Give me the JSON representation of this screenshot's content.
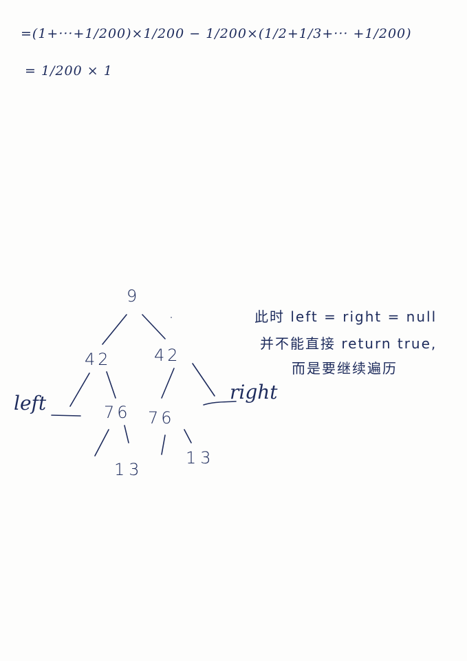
{
  "equations": {
    "line1": "=(1+···+1/200)×1/200 − 1/200×(1/2+1/3+··· +1/200)",
    "line2": "= 1/200 × 1"
  },
  "tree": {
    "root": "9",
    "left_child": "42",
    "right_child": "42",
    "left_grandchild": "76",
    "right_grandchild": "76",
    "left_leaf": "13",
    "right_leaf": "13"
  },
  "pointers": {
    "left": "left",
    "right": "right"
  },
  "note": {
    "line1": "此时 left = right = null",
    "line2": "并不能直接 return true,",
    "line3": "而是要继续遍历"
  }
}
